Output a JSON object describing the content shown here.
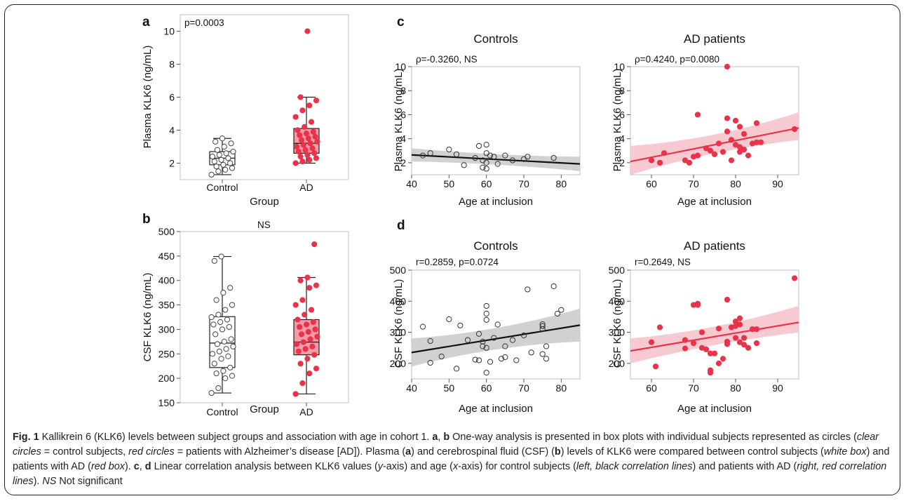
{
  "colors": {
    "ad_red": "#e8334a",
    "ad_fill": "#f59aa6",
    "control_line": "#111111",
    "ci_gray": "#cccccc",
    "ci_pink": "#f6c4cc",
    "frame_gray": "#bfbfbf"
  },
  "chart_data": [
    {
      "id": "a",
      "type": "box",
      "panel_label": "a",
      "annotation": "p=0.0003",
      "xlabel": "Group",
      "ylabel": "Plasma KLK6 (ng/mL)",
      "categories": [
        "Control",
        "AD"
      ],
      "ylim": [
        1,
        11
      ],
      "yticks": [
        2,
        4,
        6,
        8,
        10
      ],
      "boxes": [
        {
          "group": "Control",
          "min": 1.3,
          "q1": 1.9,
          "median": 2.3,
          "q3": 2.7,
          "max": 3.5
        },
        {
          "group": "AD",
          "min": 2.0,
          "q1": 2.6,
          "median": 3.2,
          "q3": 4.1,
          "max": 6.0
        }
      ],
      "points": [
        {
          "group": "Control",
          "values": [
            1.3,
            1.5,
            1.6,
            1.7,
            1.8,
            1.9,
            2.0,
            2.1,
            2.2,
            2.3,
            2.4,
            2.5,
            2.6,
            2.7,
            2.8,
            3.0,
            3.2,
            3.3,
            3.5
          ]
        },
        {
          "group": "AD",
          "values": [
            2.0,
            2.1,
            2.2,
            2.3,
            2.4,
            2.5,
            2.6,
            2.7,
            2.8,
            2.9,
            3.0,
            3.1,
            3.2,
            3.3,
            3.4,
            3.5,
            3.6,
            3.7,
            3.8,
            3.9,
            4.0,
            4.2,
            4.5,
            4.8,
            5.2,
            5.5,
            5.8,
            6.0,
            10.0
          ]
        }
      ]
    },
    {
      "id": "b",
      "type": "box",
      "panel_label": "b",
      "annotation": "NS",
      "xlabel": "Group",
      "ylabel": "CSF KLK6 (ng/mL)",
      "categories": [
        "Control",
        "AD"
      ],
      "ylim": [
        150,
        500
      ],
      "yticks": [
        150,
        200,
        250,
        300,
        350,
        400,
        450,
        500
      ],
      "boxes": [
        {
          "group": "Control",
          "min": 170,
          "q1": 222,
          "median": 272,
          "q3": 326,
          "max": 449
        },
        {
          "group": "AD",
          "min": 168,
          "q1": 248,
          "median": 274,
          "q3": 320,
          "max": 406
        }
      ],
      "points": [
        {
          "group": "Control",
          "values": [
            170,
            180,
            200,
            205,
            210,
            215,
            222,
            230,
            240,
            245,
            250,
            255,
            260,
            265,
            270,
            275,
            280,
            290,
            300,
            305,
            310,
            315,
            320,
            325,
            330,
            340,
            350,
            360,
            375,
            385,
            440,
            449
          ]
        },
        {
          "group": "AD",
          "values": [
            168,
            190,
            210,
            220,
            230,
            240,
            248,
            255,
            260,
            265,
            270,
            274,
            280,
            285,
            290,
            295,
            300,
            305,
            310,
            315,
            320,
            330,
            340,
            350,
            360,
            385,
            390,
            400,
            406,
            474
          ]
        }
      ]
    },
    {
      "id": "c-controls",
      "type": "scatter",
      "panel_label": "c",
      "title": "Controls",
      "annotation": "ρ=-0.3260, NS",
      "xlabel": "Age at inclusion",
      "ylabel": "Plasma KLK6 (ng/mL)",
      "xlim": [
        40,
        85
      ],
      "ylim": [
        1,
        10
      ],
      "xticks": [
        40,
        50,
        60,
        70,
        80
      ],
      "yticks": [
        2,
        4,
        6,
        8,
        10
      ],
      "style": "open",
      "points": [
        [
          43,
          2.6
        ],
        [
          45,
          2.8
        ],
        [
          50,
          3.1
        ],
        [
          52,
          2.7
        ],
        [
          54,
          1.8
        ],
        [
          57,
          2.4
        ],
        [
          58,
          3.4
        ],
        [
          59,
          2.2
        ],
        [
          59,
          1.6
        ],
        [
          60,
          2.8
        ],
        [
          60,
          3.5
        ],
        [
          60,
          2.0
        ],
        [
          60,
          1.5
        ],
        [
          61,
          2.6
        ],
        [
          62,
          2.5
        ],
        [
          63,
          1.9
        ],
        [
          65,
          2.6
        ],
        [
          67,
          2.2
        ],
        [
          70,
          2.3
        ],
        [
          71,
          2.5
        ],
        [
          78,
          2.4
        ]
      ],
      "fit": {
        "x": [
          40,
          85
        ],
        "y": [
          2.65,
          1.9
        ]
      },
      "ci": {
        "lower": [
          2.1,
          1.3
        ],
        "upper": [
          3.2,
          2.5
        ],
        "center_gap": 0.3
      }
    },
    {
      "id": "c-ad",
      "type": "scatter",
      "panel_label": "",
      "title": "AD patients",
      "annotation": "ρ=0.4240, p=0.0080",
      "xlabel": "Age at inclusion",
      "ylabel": "Plasma KLK6 (ng/mL)",
      "xlim": [
        55,
        95
      ],
      "ylim": [
        1,
        10
      ],
      "xticks": [
        60,
        70,
        80,
        90
      ],
      "yticks": [
        2,
        4,
        6,
        8,
        10
      ],
      "style": "filled",
      "points": [
        [
          60,
          2.2
        ],
        [
          62,
          2.0
        ],
        [
          63,
          2.8
        ],
        [
          68,
          2.2
        ],
        [
          69,
          2.0
        ],
        [
          70,
          2.5
        ],
        [
          71,
          2.6
        ],
        [
          71,
          6.0
        ],
        [
          73,
          3.2
        ],
        [
          74,
          3.0
        ],
        [
          75,
          2.7
        ],
        [
          76,
          3.6
        ],
        [
          77,
          2.9
        ],
        [
          78,
          5.7
        ],
        [
          78,
          4.6
        ],
        [
          78,
          10.0
        ],
        [
          79,
          3.9
        ],
        [
          79,
          2.2
        ],
        [
          80,
          5.5
        ],
        [
          80,
          3.5
        ],
        [
          81,
          3.3
        ],
        [
          81,
          2.9
        ],
        [
          81,
          5.0
        ],
        [
          82,
          4.4
        ],
        [
          82,
          3.1
        ],
        [
          83,
          2.6
        ],
        [
          84,
          3.6
        ],
        [
          85,
          5.3
        ],
        [
          85,
          3.7
        ],
        [
          86,
          3.7
        ],
        [
          94,
          4.8
        ]
      ],
      "fit": {
        "x": [
          55,
          95
        ],
        "y": [
          2.1,
          4.9
        ]
      },
      "ci": {
        "lower": [
          0.9,
          3.9
        ],
        "upper": [
          3.4,
          6.2
        ],
        "center_gap": 0.4
      }
    },
    {
      "id": "d-controls",
      "type": "scatter",
      "panel_label": "d",
      "title": "Controls",
      "annotation": "r=0.2859, p=0.0724",
      "xlabel": "Age at inclusion",
      "ylabel": "CSF KLK6 (ng/mL)",
      "xlim": [
        40,
        85
      ],
      "ylim": [
        150,
        500
      ],
      "xticks": [
        40,
        50,
        60,
        70,
        80
      ],
      "yticks": [
        200,
        300,
        400,
        500
      ],
      "style": "open",
      "points": [
        [
          43,
          318
        ],
        [
          45,
          202
        ],
        [
          45,
          272
        ],
        [
          48,
          222
        ],
        [
          50,
          342
        ],
        [
          52,
          183
        ],
        [
          53,
          322
        ],
        [
          55,
          275
        ],
        [
          57,
          212
        ],
        [
          58,
          210
        ],
        [
          58,
          295
        ],
        [
          59,
          270
        ],
        [
          59,
          255
        ],
        [
          60,
          385
        ],
        [
          60,
          360
        ],
        [
          60,
          340
        ],
        [
          60,
          250
        ],
        [
          60,
          170
        ],
        [
          61,
          205
        ],
        [
          62,
          282
        ],
        [
          63,
          325
        ],
        [
          64,
          215
        ],
        [
          65,
          220
        ],
        [
          65,
          255
        ],
        [
          67,
          275
        ],
        [
          68,
          210
        ],
        [
          70,
          290
        ],
        [
          71,
          438
        ],
        [
          72,
          235
        ],
        [
          75,
          310
        ],
        [
          75,
          320
        ],
        [
          75,
          326
        ],
        [
          75,
          230
        ],
        [
          76,
          215
        ],
        [
          76,
          255
        ],
        [
          78,
          448
        ],
        [
          79,
          360
        ],
        [
          80,
          372
        ]
      ],
      "fit": {
        "x": [
          40,
          85
        ],
        "y": [
          235,
          323
        ]
      },
      "ci": {
        "lower": [
          190,
          270
        ],
        "upper": [
          280,
          376
        ],
        "center_gap": 20
      }
    },
    {
      "id": "d-ad",
      "type": "scatter",
      "panel_label": "",
      "title": "AD patients",
      "annotation": "r=0.2649, NS",
      "xlabel": "Age at inclusion",
      "ylabel": "CSF KLK6 (ng/mL)",
      "xlim": [
        55,
        95
      ],
      "ylim": [
        150,
        500
      ],
      "xticks": [
        60,
        70,
        80,
        90
      ],
      "yticks": [
        200,
        300,
        400,
        500
      ],
      "style": "filled",
      "points": [
        [
          60,
          268
        ],
        [
          61,
          190
        ],
        [
          62,
          316
        ],
        [
          68,
          275
        ],
        [
          68,
          248
        ],
        [
          70,
          265
        ],
        [
          70,
          388
        ],
        [
          71,
          392
        ],
        [
          71,
          388
        ],
        [
          72,
          250
        ],
        [
          72,
          300
        ],
        [
          73,
          245
        ],
        [
          74,
          178
        ],
        [
          74,
          170
        ],
        [
          74,
          232
        ],
        [
          75,
          232
        ],
        [
          76,
          200
        ],
        [
          76,
          312
        ],
        [
          77,
          215
        ],
        [
          78,
          405
        ],
        [
          78,
          262
        ],
        [
          78,
          270
        ],
        [
          79,
          316
        ],
        [
          80,
          320
        ],
        [
          80,
          335
        ],
        [
          80,
          282
        ],
        [
          81,
          345
        ],
        [
          81,
          325
        ],
        [
          81,
          268
        ],
        [
          82,
          260
        ],
        [
          82,
          282
        ],
        [
          83,
          250
        ],
        [
          84,
          310
        ],
        [
          85,
          310
        ],
        [
          85,
          265
        ],
        [
          94,
          474
        ]
      ],
      "fit": {
        "x": [
          55,
          95
        ],
        "y": [
          240,
          332
        ]
      },
      "ci": {
        "lower": [
          200,
          300
        ],
        "upper": [
          280,
          385
        ],
        "center_gap": 18
      }
    }
  ],
  "caption": {
    "fig_label": "Fig. 1",
    "s1": " Kallikrein 6 (KLK6) levels between subject groups and association with age in cohort 1. ",
    "a1": "a",
    "sep1": ", ",
    "b1": "b",
    "s2": " One-way analysis is presented in box plots with individual subjects represented as circles (",
    "i1": "clear circles",
    "s3": " = control subjects, ",
    "i2": "red circles",
    "s4": " = patients with Alzheimer’s disease [AD]). Plasma (",
    "a2": "a",
    "s5": ") and cerebrospinal fluid (CSF) (",
    "b2": "b",
    "s6": ") levels of KLK6 were compared between control subjects (",
    "i3": "white box",
    "s7": ") and patients with AD (",
    "i4": "red box",
    "s8": "). ",
    "c1": "c",
    "sep2": ", ",
    "d1": "d",
    "s9": " Linear correlation analysis between KLK6 values (",
    "i5": "y",
    "s10": "-axis) and age (",
    "i6": "x",
    "s11": "-axis) for control subjects (",
    "i7": "left, black correlation lines",
    "s12": ") and patients with AD (",
    "i8": "right, red correlation lines",
    "s13": "). ",
    "i9": "NS",
    "s14": " Not significant"
  }
}
